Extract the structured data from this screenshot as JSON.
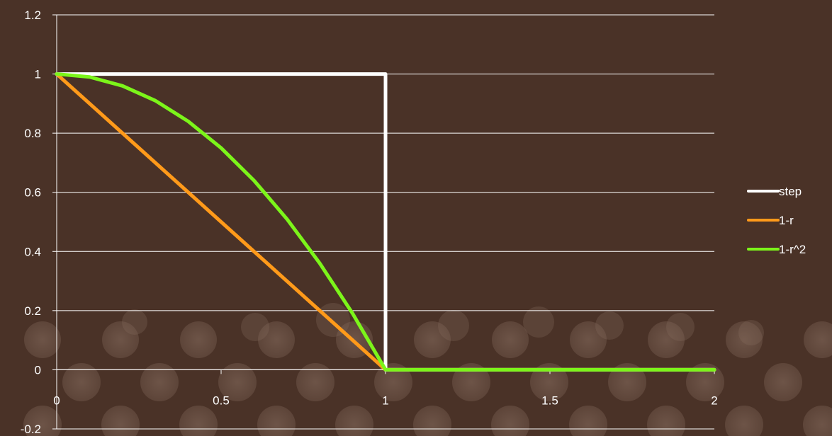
{
  "chart_data": {
    "type": "line",
    "title": "",
    "xlabel": "",
    "ylabel": "",
    "xlim": [
      0,
      2
    ],
    "ylim": [
      -0.2,
      1.2
    ],
    "x_ticks": [
      0,
      0.5,
      1,
      1.5,
      2
    ],
    "x_tick_labels": [
      "0",
      "0.5",
      "1",
      "1.5",
      "2"
    ],
    "y_ticks": [
      -0.2,
      0,
      0.2,
      0.4,
      0.6,
      0.8,
      1,
      1.2
    ],
    "y_tick_labels": [
      "-0.2",
      "0",
      "0.2",
      "0.4",
      "0.6",
      "0.8",
      "1",
      "1.2"
    ],
    "grid": "horizontal",
    "legend_position": "right",
    "series": [
      {
        "name": "step",
        "color": "#ffffff",
        "points": [
          [
            0,
            1
          ],
          [
            1,
            1
          ],
          [
            1,
            0
          ],
          [
            1.2,
            0
          ],
          [
            1.4,
            0
          ],
          [
            1.6,
            0
          ],
          [
            1.8,
            0
          ],
          [
            2,
            0
          ]
        ]
      },
      {
        "name": "1-r",
        "color": "#ff9a1a",
        "points": [
          [
            0,
            1
          ],
          [
            0.25,
            0.75
          ],
          [
            0.5,
            0.5
          ],
          [
            0.75,
            0.25
          ],
          [
            1,
            0
          ],
          [
            1.5,
            0
          ],
          [
            2,
            0
          ]
        ]
      },
      {
        "name": "1-r^2",
        "color": "#7cf51a",
        "points": [
          [
            0,
            1
          ],
          [
            0.1,
            0.99
          ],
          [
            0.2,
            0.96
          ],
          [
            0.3,
            0.91
          ],
          [
            0.4,
            0.84
          ],
          [
            0.5,
            0.75
          ],
          [
            0.6,
            0.64
          ],
          [
            0.7,
            0.51
          ],
          [
            0.8,
            0.36
          ],
          [
            0.9,
            0.19
          ],
          [
            1,
            0
          ],
          [
            1.5,
            0
          ],
          [
            2,
            0
          ]
        ]
      }
    ]
  }
}
